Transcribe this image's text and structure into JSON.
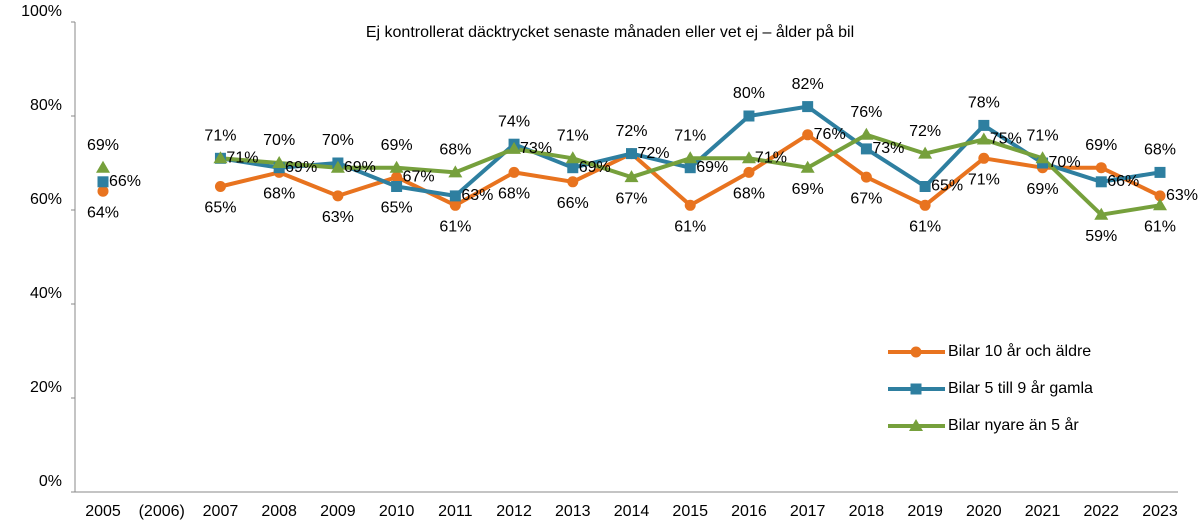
{
  "chart_data": {
    "type": "line",
    "title": "Ej kontrollerat däcktrycket senaste månaden eller vet ej – ålder på bil",
    "categories": [
      "2005",
      "(2006)",
      "2007",
      "2008",
      "2009",
      "2010",
      "2011",
      "2012",
      "2013",
      "2014",
      "2015",
      "2016",
      "2017",
      "2018",
      "2019",
      "2020",
      "2021",
      "2022",
      "2023"
    ],
    "series": [
      {
        "name": "Bilar 10 år och äldre",
        "color": "#e8731f",
        "marker": "circle",
        "values": [
          64,
          null,
          65,
          68,
          63,
          67,
          61,
          68,
          66,
          72,
          61,
          68,
          76,
          67,
          61,
          71,
          69,
          69,
          63
        ],
        "value_labels": [
          "64%",
          null,
          "65%",
          "68%",
          "63%",
          "67%",
          "61%",
          "68%",
          "66%",
          "72%",
          "61%",
          "68%",
          "76%",
          "67%",
          "61%",
          "71%",
          "69%",
          "69%",
          "63%"
        ]
      },
      {
        "name": "Bilar 5 till 9 år gamla",
        "color": "#2e7fa0",
        "marker": "square",
        "values": [
          66,
          null,
          71,
          69,
          70,
          65,
          63,
          74,
          69,
          72,
          69,
          80,
          82,
          73,
          65,
          78,
          70,
          66,
          68
        ],
        "value_labels": [
          "66%",
          null,
          "71%",
          "69%",
          "70%",
          "65%",
          "63%",
          "74%",
          "69%",
          "72%",
          "69%",
          "80%",
          "82%",
          "73%",
          "65%",
          "78%",
          "70%",
          "66%",
          "68%"
        ]
      },
      {
        "name": "Bilar nyare än 5 år",
        "color": "#76a03c",
        "marker": "triangle",
        "values": [
          69,
          null,
          71,
          70,
          69,
          69,
          68,
          73,
          71,
          67,
          71,
          71,
          69,
          76,
          72,
          75,
          71,
          59,
          61
        ],
        "value_labels": [
          "69%",
          null,
          "71%",
          "70%",
          "69%",
          "69%",
          "68%",
          "73%",
          "71%",
          "67%",
          "71%",
          "71%",
          "69%",
          "76%",
          "72%",
          "75%",
          "71%",
          "59%",
          "61%"
        ]
      }
    ],
    "ylim": [
      0,
      100
    ],
    "yticks": [
      {
        "value": 0,
        "label": "0%"
      },
      {
        "value": 20,
        "label": "20%"
      },
      {
        "value": 40,
        "label": "40%"
      },
      {
        "value": 60,
        "label": "60%"
      },
      {
        "value": 80,
        "label": "80%"
      },
      {
        "value": 100,
        "label": "100%"
      }
    ],
    "grid": false,
    "legend": "right"
  }
}
